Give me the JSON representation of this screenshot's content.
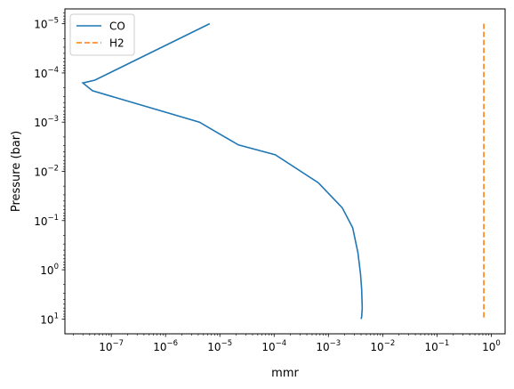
{
  "chart_data": {
    "type": "line",
    "title": "",
    "xlabel": "mmr",
    "ylabel": "Pressure (bar)",
    "xscale": "log",
    "yscale": "log",
    "yaxis_inverted": true,
    "xlim": [
      1.4e-08,
      1.8
    ],
    "ylim": [
      20,
      5e-06
    ],
    "grid": false,
    "legend_position": "top-left",
    "x_ticks": [
      {
        "value": 1e-07,
        "mantissa": "10",
        "exponent": "−7"
      },
      {
        "value": 1e-06,
        "mantissa": "10",
        "exponent": "−6"
      },
      {
        "value": 1e-05,
        "mantissa": "10",
        "exponent": "−5"
      },
      {
        "value": 0.0001,
        "mantissa": "10",
        "exponent": "−4"
      },
      {
        "value": 0.001,
        "mantissa": "10",
        "exponent": "−3"
      },
      {
        "value": 0.01,
        "mantissa": "10",
        "exponent": "−2"
      },
      {
        "value": 0.1,
        "mantissa": "10",
        "exponent": "−1"
      },
      {
        "value": 1,
        "mantissa": "10",
        "exponent": "0"
      }
    ],
    "y_ticks": [
      {
        "value": 1e-05,
        "mantissa": "10",
        "exponent": "−5"
      },
      {
        "value": 0.0001,
        "mantissa": "10",
        "exponent": "−4"
      },
      {
        "value": 0.001,
        "mantissa": "10",
        "exponent": "−3"
      },
      {
        "value": 0.01,
        "mantissa": "10",
        "exponent": "−2"
      },
      {
        "value": 0.1,
        "mantissa": "10",
        "exponent": "−1"
      },
      {
        "value": 1,
        "mantissa": "10",
        "exponent": "0"
      },
      {
        "value": 10,
        "mantissa": "10",
        "exponent": "1"
      }
    ],
    "series": [
      {
        "name": "CO",
        "color": "#1f77b4",
        "dash": "solid",
        "points": [
          {
            "x": 6.5e-06,
            "y": 1e-05
          },
          {
            "x": 5e-08,
            "y": 0.00014
          },
          {
            "x": 3e-08,
            "y": 0.00016
          },
          {
            "x": 4.5e-08,
            "y": 0.00023
          },
          {
            "x": 4.2e-06,
            "y": 0.001
          },
          {
            "x": 2.2e-05,
            "y": 0.0029
          },
          {
            "x": 0.000105,
            "y": 0.0046
          },
          {
            "x": 0.00065,
            "y": 0.017
          },
          {
            "x": 0.0018,
            "y": 0.055
          },
          {
            "x": 0.0028,
            "y": 0.14
          },
          {
            "x": 0.0035,
            "y": 0.45
          },
          {
            "x": 0.0039,
            "y": 1.2
          },
          {
            "x": 0.0041,
            "y": 2.5
          },
          {
            "x": 0.0042,
            "y": 6.0
          },
          {
            "x": 0.0041,
            "y": 9.0
          },
          {
            "x": 0.004,
            "y": 10.0
          }
        ]
      },
      {
        "name": "H2",
        "color": "#ff7f0e",
        "dash": "dashed",
        "points": [
          {
            "x": 0.73,
            "y": 1e-05
          },
          {
            "x": 0.73,
            "y": 10
          }
        ]
      }
    ]
  }
}
